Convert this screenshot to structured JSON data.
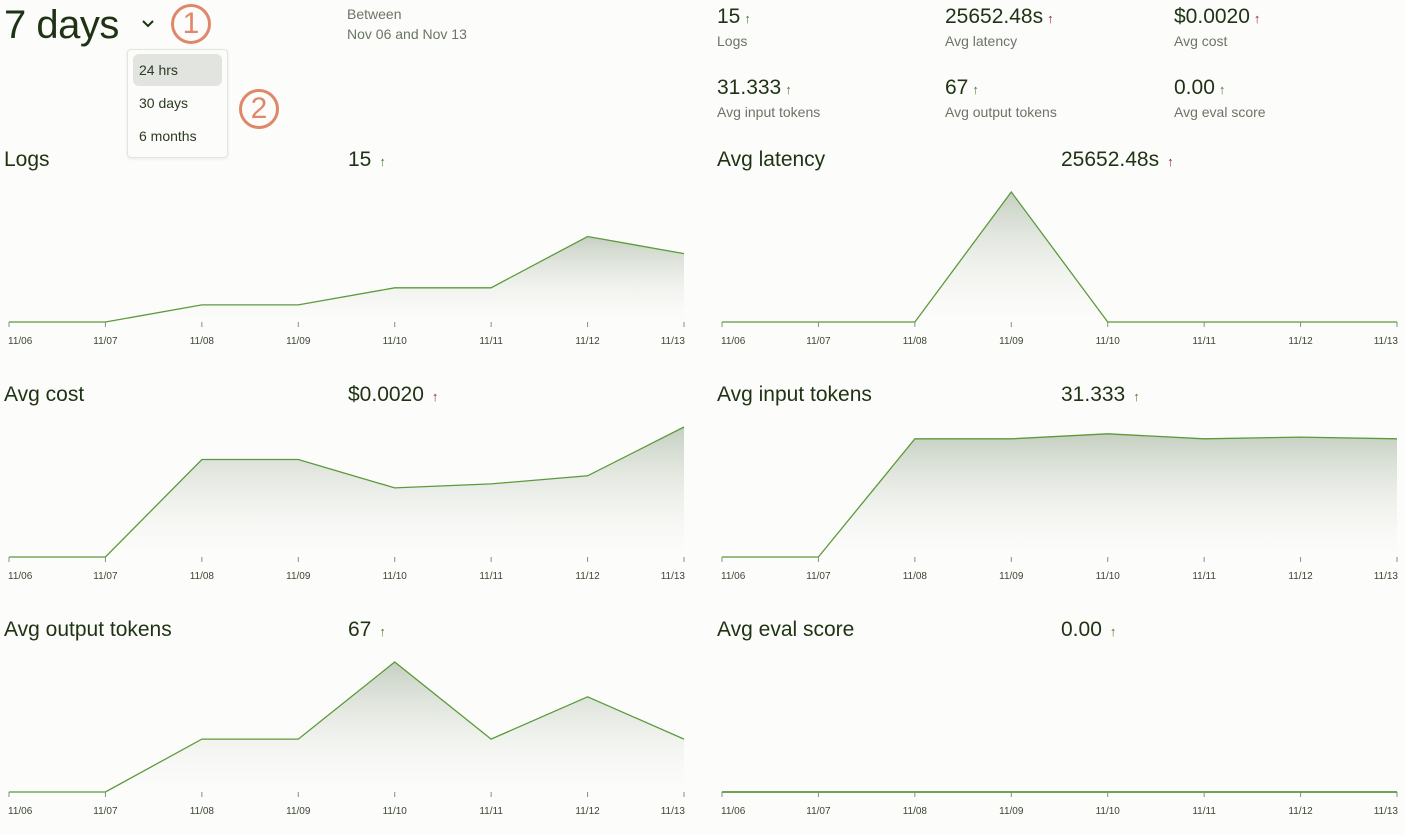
{
  "header": {
    "range_label": "7 days",
    "between_label": "Between",
    "date_range": "Nov 06 and Nov 13"
  },
  "dropdown": {
    "options": [
      {
        "label": "24 hrs",
        "selected": true
      },
      {
        "label": "30 days",
        "selected": false
      },
      {
        "label": "6 months",
        "selected": false
      }
    ]
  },
  "annotations": [
    "1",
    "2"
  ],
  "summary": [
    {
      "value": "15",
      "label": "Logs",
      "trend": "up",
      "trend_color": "#4b7a3c"
    },
    {
      "value": "25652.48s",
      "label": "Avg latency",
      "trend": "up",
      "trend_color": "#a3204a"
    },
    {
      "value": "$0.0020",
      "label": "Avg cost",
      "trend": "up",
      "trend_color": "#a3204a"
    },
    {
      "value": "31.333",
      "label": "Avg input tokens",
      "trend": "up",
      "trend_color": "#4b7a3c"
    },
    {
      "value": "67",
      "label": "Avg output tokens",
      "trend": "up",
      "trend_color": "#4b7a3c"
    },
    {
      "value": "0.00",
      "label": "Avg eval score",
      "trend": "up",
      "trend_color": "#4b7a3c"
    }
  ],
  "colors": {
    "line": "#5c9a3c",
    "fill_top": "#c3cdbf",
    "good_arrow": "#4b7a3c",
    "bad_arrow": "#a3204a",
    "annotation": "#e0876a"
  },
  "chart_data": [
    {
      "type": "area",
      "title": "Logs",
      "value": "15",
      "trend": "up",
      "trend_color": "#4b7a3c",
      "categories": [
        "11/06",
        "11/07",
        "11/08",
        "11/09",
        "11/10",
        "11/11",
        "11/12",
        "11/13"
      ],
      "values": [
        0,
        0,
        1,
        1,
        2,
        2,
        5,
        4
      ],
      "ylim": [
        0,
        7.6
      ]
    },
    {
      "type": "area",
      "title": "Avg latency",
      "value": "25652.48s",
      "trend": "up",
      "trend_color": "#a3204a",
      "categories": [
        "11/06",
        "11/07",
        "11/08",
        "11/09",
        "11/10",
        "11/11",
        "11/12",
        "11/13"
      ],
      "values": [
        0,
        0,
        0,
        205219.84,
        0,
        0,
        0,
        0
      ],
      "ylim": [
        0,
        205219.84
      ]
    },
    {
      "type": "area",
      "title": "Avg cost",
      "value": "$0.0020",
      "trend": "up",
      "trend_color": "#a3204a",
      "categories": [
        "11/06",
        "11/07",
        "11/08",
        "11/09",
        "11/10",
        "11/11",
        "11/12",
        "11/13"
      ],
      "values": [
        0,
        0,
        0.0024,
        0.0024,
        0.0017,
        0.0018,
        0.002,
        0.0032
      ],
      "ylim": [
        0,
        0.0032
      ]
    },
    {
      "type": "area",
      "title": "Avg input tokens",
      "value": "31.333",
      "trend": "up",
      "trend_color": "#4b7a3c",
      "categories": [
        "11/06",
        "11/07",
        "11/08",
        "11/09",
        "11/10",
        "11/11",
        "11/12",
        "11/13"
      ],
      "values": [
        0,
        0,
        35,
        35,
        36.5,
        35,
        35.5,
        35
      ],
      "ylim": [
        0,
        38.5
      ]
    },
    {
      "type": "area",
      "title": "Avg output tokens",
      "value": "67",
      "trend": "up",
      "trend_color": "#4b7a3c",
      "categories": [
        "11/06",
        "11/07",
        "11/08",
        "11/09",
        "11/10",
        "11/11",
        "11/12",
        "11/13"
      ],
      "values": [
        0,
        0,
        70,
        70,
        172,
        70,
        126,
        70
      ],
      "ylim": [
        0,
        172
      ]
    },
    {
      "type": "area",
      "title": "Avg eval score",
      "value": "0.00",
      "trend": "up",
      "trend_color": "#4b7a3c",
      "categories": [
        "11/06",
        "11/07",
        "11/08",
        "11/09",
        "11/10",
        "11/11",
        "11/12",
        "11/13"
      ],
      "values": [
        0,
        0,
        0,
        0,
        0,
        0,
        0,
        0
      ],
      "ylim": [
        0,
        1
      ]
    }
  ]
}
